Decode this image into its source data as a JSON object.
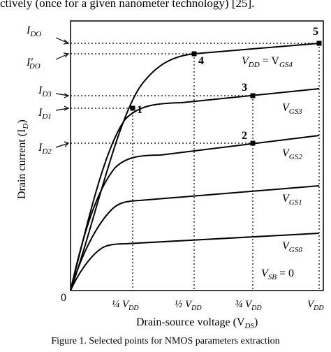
{
  "header_text": "ctively (once for a given nanometer technology) [25].",
  "figure": {
    "y_axis_label": "Drain current (I",
    "y_axis_label_sub": "D",
    "y_axis_label_end": ")",
    "x_axis_label": "Drain-source voltage (V",
    "x_axis_label_sub": "DS",
    "x_axis_label_end": ")",
    "origin_label": "0",
    "x_ticks": [
      {
        "prefix": "¼ V",
        "sub": "DD"
      },
      {
        "prefix": "½ V",
        "sub": "DD"
      },
      {
        "prefix": "¾ V",
        "sub": "DD"
      },
      {
        "prefix": "V",
        "sub": "DD"
      }
    ],
    "y_ticks": [
      {
        "main": "I",
        "sub": "DO",
        "prime": ""
      },
      {
        "main": "I",
        "sub": "DO",
        "prime": "′"
      },
      {
        "main": "I",
        "sub": "D3",
        "prime": ""
      },
      {
        "main": "I",
        "sub": "D1",
        "prime": ""
      },
      {
        "main": "I",
        "sub": "D2",
        "prime": ""
      }
    ],
    "curves": [
      {
        "label_main": "V",
        "label_sub": "DD",
        "label_mid": " = V",
        "label_sub2": "GS4"
      },
      {
        "label_main": "V",
        "label_sub": "GS3"
      },
      {
        "label_main": "V",
        "label_sub": "GS2"
      },
      {
        "label_main": "V",
        "label_sub": "GS1"
      },
      {
        "label_main": "V",
        "label_sub": "GS0"
      }
    ],
    "points": [
      "1",
      "2",
      "3",
      "4",
      "5"
    ],
    "vsb": {
      "main": "V",
      "sub": "SB",
      "rest": " = 0"
    }
  },
  "caption": "Figure 1.   Selected points for NMOS parameters extraction"
}
